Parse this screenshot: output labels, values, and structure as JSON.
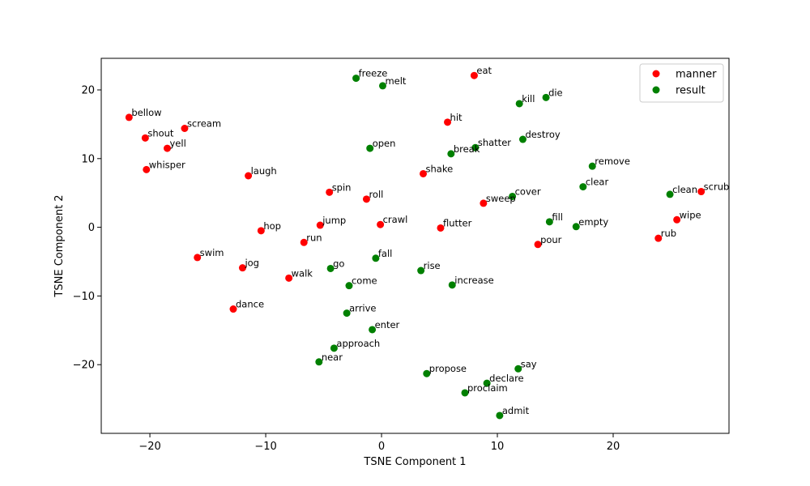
{
  "chart_data": {
    "type": "scatter",
    "title": "",
    "xlabel": "TSNE Component 1",
    "ylabel": "TSNE Component 2",
    "xlim": [
      -24.2,
      30.0
    ],
    "ylim": [
      -30.0,
      24.6
    ],
    "xticks": [
      -20,
      -10,
      0,
      10,
      20
    ],
    "yticks": [
      -20,
      -10,
      0,
      10,
      20
    ],
    "grid": false,
    "legend_position": "top-right",
    "series": [
      {
        "name": "manner",
        "color": "#ff0000",
        "points": [
          {
            "label": "bellow",
            "x": -21.8,
            "y": 16.0
          },
          {
            "label": "shout",
            "x": -20.4,
            "y": 13.0
          },
          {
            "label": "scream",
            "x": -17.0,
            "y": 14.4
          },
          {
            "label": "yell",
            "x": -18.5,
            "y": 11.5
          },
          {
            "label": "whisper",
            "x": -20.3,
            "y": 8.4
          },
          {
            "label": "laugh",
            "x": -11.5,
            "y": 7.5
          },
          {
            "label": "spin",
            "x": -4.5,
            "y": 5.1
          },
          {
            "label": "roll",
            "x": -1.3,
            "y": 4.1
          },
          {
            "label": "jump",
            "x": -5.3,
            "y": 0.3
          },
          {
            "label": "crawl",
            "x": -0.1,
            "y": 0.4
          },
          {
            "label": "hop",
            "x": -10.4,
            "y": -0.5
          },
          {
            "label": "run",
            "x": -6.7,
            "y": -2.2
          },
          {
            "label": "swim",
            "x": -15.9,
            "y": -4.4
          },
          {
            "label": "jog",
            "x": -12.0,
            "y": -5.9
          },
          {
            "label": "walk",
            "x": -8.0,
            "y": -7.4
          },
          {
            "label": "dance",
            "x": -12.8,
            "y": -11.9
          },
          {
            "label": "eat",
            "x": 8.0,
            "y": 22.1
          },
          {
            "label": "hit",
            "x": 5.7,
            "y": 15.3
          },
          {
            "label": "shake",
            "x": 3.6,
            "y": 7.8
          },
          {
            "label": "sweep",
            "x": 8.8,
            "y": 3.5
          },
          {
            "label": "flutter",
            "x": 5.1,
            "y": -0.1
          },
          {
            "label": "pour",
            "x": 13.5,
            "y": -2.5
          },
          {
            "label": "scrub",
            "x": 27.6,
            "y": 5.2
          },
          {
            "label": "wipe",
            "x": 25.5,
            "y": 1.1
          },
          {
            "label": "rub",
            "x": 23.9,
            "y": -1.6
          }
        ]
      },
      {
        "name": "result",
        "color": "#008000",
        "points": [
          {
            "label": "freeze",
            "x": -2.2,
            "y": 21.7
          },
          {
            "label": "melt",
            "x": 0.1,
            "y": 20.6
          },
          {
            "label": "kill",
            "x": 11.9,
            "y": 18.0
          },
          {
            "label": "die",
            "x": 14.2,
            "y": 18.9
          },
          {
            "label": "open",
            "x": -1.0,
            "y": 11.5
          },
          {
            "label": "break",
            "x": 6.0,
            "y": 10.7
          },
          {
            "label": "shatter",
            "x": 8.1,
            "y": 11.6
          },
          {
            "label": "destroy",
            "x": 12.2,
            "y": 12.8
          },
          {
            "label": "remove",
            "x": 18.2,
            "y": 8.9
          },
          {
            "label": "clear",
            "x": 17.4,
            "y": 5.9
          },
          {
            "label": "clean",
            "x": 24.9,
            "y": 4.8
          },
          {
            "label": "cover",
            "x": 11.3,
            "y": 4.5
          },
          {
            "label": "fill",
            "x": 14.5,
            "y": 0.8
          },
          {
            "label": "empty",
            "x": 16.8,
            "y": 0.1
          },
          {
            "label": "fall",
            "x": -0.5,
            "y": -4.5
          },
          {
            "label": "go",
            "x": -4.4,
            "y": -6.0
          },
          {
            "label": "rise",
            "x": 3.4,
            "y": -6.3
          },
          {
            "label": "come",
            "x": -2.8,
            "y": -8.5
          },
          {
            "label": "increase",
            "x": 6.1,
            "y": -8.4
          },
          {
            "label": "arrive",
            "x": -3.0,
            "y": -12.5
          },
          {
            "label": "enter",
            "x": -0.8,
            "y": -14.9
          },
          {
            "label": "approach",
            "x": -4.1,
            "y": -17.6
          },
          {
            "label": "near",
            "x": -5.4,
            "y": -19.6
          },
          {
            "label": "propose",
            "x": 3.9,
            "y": -21.3
          },
          {
            "label": "say",
            "x": 11.8,
            "y": -20.6
          },
          {
            "label": "declare",
            "x": 9.1,
            "y": -22.7
          },
          {
            "label": "proclaim",
            "x": 7.2,
            "y": -24.1
          },
          {
            "label": "admit",
            "x": 10.2,
            "y": -27.4
          }
        ]
      }
    ]
  }
}
